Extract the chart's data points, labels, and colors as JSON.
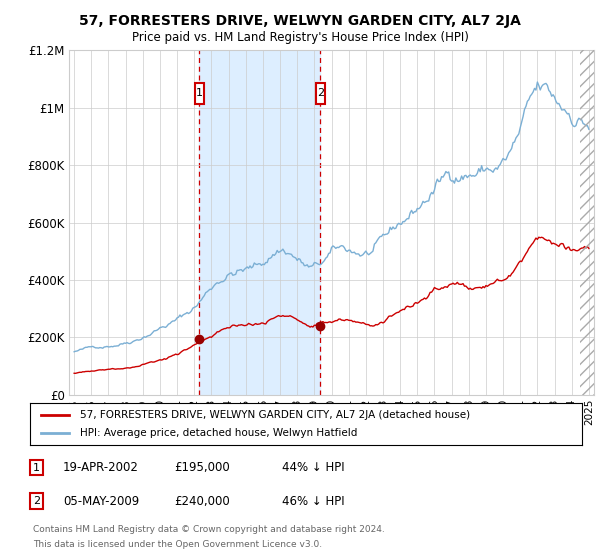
{
  "title": "57, FORRESTERS DRIVE, WELWYN GARDEN CITY, AL7 2JA",
  "subtitle": "Price paid vs. HM Land Registry's House Price Index (HPI)",
  "legend_line1": "57, FORRESTERS DRIVE, WELWYN GARDEN CITY, AL7 2JA (detached house)",
  "legend_line2": "HPI: Average price, detached house, Welwyn Hatfield",
  "ann1_label": "1",
  "ann1_date": "19-APR-2002",
  "ann1_price": 195000,
  "ann1_hpi_note": "44% ↓ HPI",
  "ann1_x": 2002.29,
  "ann2_label": "2",
  "ann2_date": "05-MAY-2009",
  "ann2_price": 240000,
  "ann2_hpi_note": "46% ↓ HPI",
  "ann2_x": 2009.35,
  "footnote1": "Contains HM Land Registry data © Crown copyright and database right 2024.",
  "footnote2": "This data is licensed under the Open Government Licence v3.0.",
  "hpi_color": "#7bafd4",
  "price_color": "#cc0000",
  "ann_dot_color": "#990000",
  "ann_box_color": "#cc0000",
  "shading_color": "#ddeeff",
  "background_color": "#ffffff",
  "grid_color": "#cccccc",
  "ylim": [
    0,
    1200000
  ],
  "xlim_start": 1994.7,
  "xlim_end": 2025.3,
  "yticks": [
    0,
    200000,
    400000,
    600000,
    800000,
    1000000,
    1200000
  ],
  "ytick_labels": [
    "£0",
    "£200K",
    "£400K",
    "£600K",
    "£800K",
    "£1M",
    "£1.2M"
  ],
  "xticks": [
    1995,
    1996,
    1997,
    1998,
    1999,
    2000,
    2001,
    2002,
    2003,
    2004,
    2005,
    2006,
    2007,
    2008,
    2009,
    2010,
    2011,
    2012,
    2013,
    2014,
    2015,
    2016,
    2017,
    2018,
    2019,
    2020,
    2021,
    2022,
    2023,
    2024,
    2025
  ]
}
